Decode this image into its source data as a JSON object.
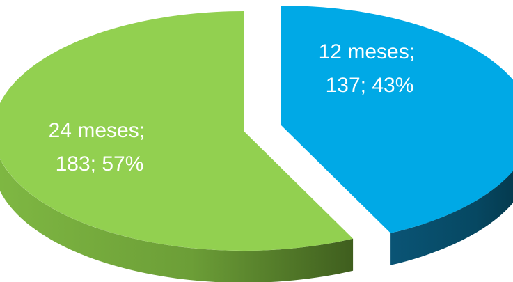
{
  "chart_data": {
    "type": "pie",
    "style": "3d-exploded",
    "slices": [
      {
        "category": "12 meses",
        "value": 137,
        "percent": 43,
        "label_line1": "12 meses;",
        "label_line2": "137; 43%",
        "top_color": "#00A9E6",
        "side_color": "#05445F"
      },
      {
        "category": "24 meses",
        "value": 183,
        "percent": 57,
        "label_line1": "24 meses;",
        "label_line2": "183; 57%",
        "top_color": "#92D050",
        "side_color": "#5E8C2E"
      }
    ],
    "legend": false
  }
}
